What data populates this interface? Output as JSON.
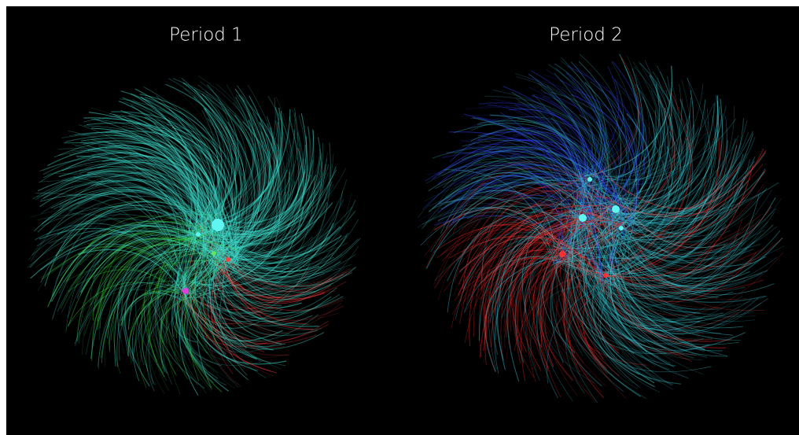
{
  "panels": [
    {
      "title": "Period 1"
    },
    {
      "title": "Period 2"
    }
  ]
}
